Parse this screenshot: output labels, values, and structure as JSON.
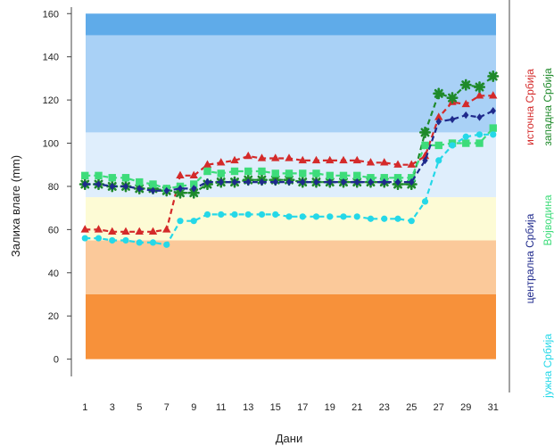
{
  "chart_data": {
    "type": "scatter",
    "title": "",
    "xlabel": "Дани",
    "ylabel": "Залиха влаге (mm)",
    "xlim": [
      0,
      32
    ],
    "ylim": [
      -8,
      163
    ],
    "x_ticks": [
      1,
      3,
      5,
      7,
      9,
      11,
      13,
      15,
      17,
      19,
      21,
      23,
      25,
      27,
      29,
      31
    ],
    "y_ticks": [
      0,
      20,
      40,
      60,
      80,
      100,
      120,
      140,
      160
    ],
    "bands": [
      {
        "from": 0,
        "to": 30,
        "color": "#f7913a"
      },
      {
        "from": 30,
        "to": 55,
        "color": "#fbc99a"
      },
      {
        "from": 55,
        "to": 75,
        "color": "#fdfbd5"
      },
      {
        "from": 75,
        "to": 105,
        "color": "#dfeefc"
      },
      {
        "from": 105,
        "to": 150,
        "color": "#a9d1f6"
      },
      {
        "from": 150,
        "to": 160,
        "color": "#5fabe9"
      }
    ],
    "x": [
      1,
      2,
      3,
      4,
      5,
      6,
      7,
      8,
      9,
      10,
      11,
      12,
      13,
      14,
      15,
      16,
      17,
      18,
      19,
      20,
      21,
      22,
      23,
      24,
      25,
      26,
      27,
      28,
      29,
      30,
      31
    ],
    "series": [
      {
        "name": "источна Србија",
        "color": "#d42a2a",
        "marker": "triangle",
        "values": [
          60,
          60,
          59,
          59,
          59,
          59,
          60,
          85,
          85,
          90,
          91,
          92,
          94,
          93,
          93,
          93,
          92,
          92,
          92,
          92,
          92,
          91,
          91,
          90,
          90,
          94,
          112,
          119,
          118,
          122,
          122
        ]
      },
      {
        "name": "западна Србија",
        "color": "#1f8a2b",
        "marker": "asterisk",
        "values": [
          81,
          81,
          80,
          80,
          79,
          79,
          78,
          77,
          77,
          81,
          82,
          82,
          83,
          83,
          83,
          83,
          82,
          82,
          82,
          82,
          82,
          82,
          82,
          81,
          81,
          105,
          123,
          121,
          127,
          126,
          131
        ]
      },
      {
        "name": "Војводина",
        "color": "#3ddc7a",
        "marker": "square",
        "values": [
          85,
          85,
          84,
          84,
          82,
          81,
          79,
          80,
          81,
          87,
          86,
          87,
          87,
          87,
          86,
          86,
          86,
          86,
          85,
          85,
          85,
          84,
          84,
          84,
          84,
          99,
          99,
          100,
          100,
          100,
          107
        ]
      },
      {
        "name": "централна Србија",
        "color": "#1f2a8c",
        "marker": "diamond",
        "values": [
          81,
          81,
          80,
          80,
          79,
          78,
          78,
          79,
          79,
          82,
          82,
          82,
          82,
          82,
          82,
          82,
          82,
          82,
          82,
          82,
          82,
          82,
          82,
          82,
          82,
          92,
          110,
          111,
          113,
          112,
          115
        ]
      },
      {
        "name": "јужна Србија",
        "color": "#25d8e8",
        "marker": "circle",
        "values": [
          56,
          56,
          55,
          55,
          54,
          54,
          53,
          64,
          64,
          67,
          67,
          67,
          67,
          67,
          67,
          66,
          66,
          66,
          66,
          66,
          66,
          65,
          65,
          65,
          64,
          73,
          92,
          99,
          103,
          104,
          104
        ]
      }
    ],
    "grid": false
  }
}
